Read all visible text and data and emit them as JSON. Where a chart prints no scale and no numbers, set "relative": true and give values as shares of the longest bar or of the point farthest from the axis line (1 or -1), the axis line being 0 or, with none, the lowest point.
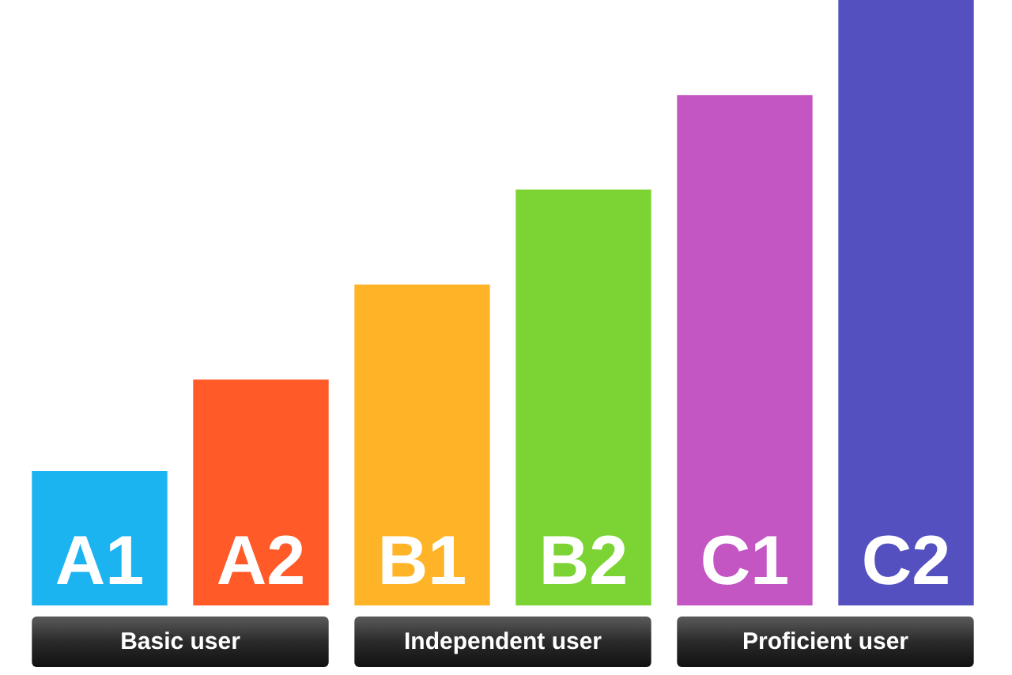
{
  "chart_data": {
    "type": "bar",
    "relative": true,
    "categories": [
      "A1",
      "A2",
      "B1",
      "B2",
      "C1",
      "C2"
    ],
    "values": [
      0.222,
      0.373,
      0.53,
      0.687,
      0.843,
      1
    ],
    "colors": [
      "#1cb4f0",
      "#ff5a28",
      "#ffb428",
      "#7cd434",
      "#c456c4",
      "#5450c0"
    ],
    "annotations": [
      "Basic user",
      "Independent user",
      "Proficient user"
    ]
  }
}
